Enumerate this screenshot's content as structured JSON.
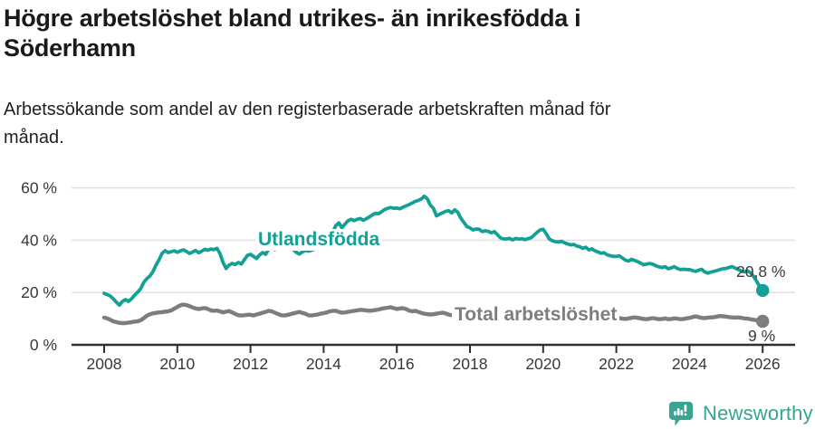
{
  "header": {
    "title_line1": "Högre arbetslöshet bland utrikes- än inrikesfödda i",
    "title_line2": "Söderhamn",
    "subtitle_line1": "Arbetssökande som andel av den registerbaserade arbetskraften månad för",
    "subtitle_line2": "månad."
  },
  "footer": {
    "brand": "Newsworthy"
  },
  "colors": {
    "foreign_born_line": "#14a096",
    "total_line": "#7d7d7d",
    "grid": "#e2e2e2",
    "axis": "#2f2f2f",
    "text": "#1a1a1a",
    "tick_text": "#383838",
    "logo": "#35a493"
  },
  "chart_data": {
    "type": "line",
    "title": "Högre arbetslöshet bland utrikes- än inrikesfödda i Söderhamn",
    "subtitle": "Arbetssökande som andel av den registerbaserade arbetskraften månad för månad.",
    "x_unit": "monthly, decimal years",
    "xlim": [
      2008,
      2026.9
    ],
    "ylim": [
      0,
      63
    ],
    "grid": "horizontal",
    "y_ticks": [
      {
        "value": 0,
        "label": "0 %"
      },
      {
        "value": 20,
        "label": "20 %"
      },
      {
        "value": 40,
        "label": "40 %"
      },
      {
        "value": 60,
        "label": "60 %"
      }
    ],
    "x_ticks": [
      {
        "value": 2008,
        "label": "2008"
      },
      {
        "value": 2010,
        "label": "2010"
      },
      {
        "value": 2012,
        "label": "2012"
      },
      {
        "value": 2014,
        "label": "2014"
      },
      {
        "value": 2016,
        "label": "2016"
      },
      {
        "value": 2018,
        "label": "2018"
      },
      {
        "value": 2020,
        "label": "2020"
      },
      {
        "value": 2022,
        "label": "2022"
      },
      {
        "value": 2024,
        "label": "2024"
      },
      {
        "value": 2026,
        "label": "2026"
      }
    ],
    "series": [
      {
        "id": "utlandsfodda",
        "name": "Utlandsfödda",
        "color": "#14a096",
        "line_width": 3.8,
        "start_year": 2008,
        "interval": "monthly",
        "end_label": "20,8 %",
        "end_value": 20.8,
        "values": [
          19.7,
          19.2,
          18.7,
          17.6,
          16.3,
          15.2,
          16.6,
          17.3,
          16.6,
          17.6,
          19.0,
          20.1,
          21.5,
          23.9,
          25.3,
          26.3,
          28.0,
          30.4,
          32.5,
          35.0,
          36.0,
          35.3,
          35.6,
          35.9,
          35.4,
          35.9,
          36.3,
          35.7,
          34.9,
          35.5,
          36.1,
          35.2,
          35.8,
          36.5,
          36.2,
          36.6,
          36.4,
          36.9,
          34.9,
          31.5,
          29.2,
          30.5,
          31.1,
          30.7,
          31.5,
          30.9,
          32.6,
          34.2,
          34.6,
          33.8,
          33.0,
          34.4,
          35.3,
          34.6,
          36.7,
          37.3,
          36.4,
          37.8,
          36.9,
          37.2,
          37.8,
          37.4,
          36.5,
          35.4,
          34.7,
          35.5,
          36.1,
          35.8,
          36.2,
          36.6,
          37.0,
          37.4,
          38.1,
          39.1,
          40.6,
          43.1,
          45.6,
          46.6,
          44.7,
          46.2,
          47.4,
          48.0,
          47.5,
          48.0,
          48.3,
          47.6,
          48.2,
          48.9,
          49.7,
          50.3,
          50.1,
          50.9,
          51.7,
          52.2,
          52.5,
          52.2,
          52.3,
          52.0,
          52.6,
          53.1,
          53.6,
          54.2,
          54.8,
          55.2,
          55.7,
          56.8,
          55.8,
          53.4,
          52.2,
          49.3,
          49.9,
          50.5,
          51.0,
          51.3,
          50.4,
          51.6,
          50.7,
          48.4,
          46.8,
          45.2,
          44.7,
          43.9,
          44.3,
          44.2,
          43.3,
          43.6,
          43.4,
          42.8,
          43.3,
          42.1,
          40.9,
          40.5,
          40.5,
          40.7,
          40.1,
          40.7,
          40.4,
          40.6,
          40.2,
          40.6,
          40.9,
          41.9,
          43.0,
          43.9,
          44.2,
          42.5,
          40.5,
          39.8,
          39.4,
          39.3,
          39.6,
          39.0,
          38.6,
          38.2,
          38.4,
          37.8,
          37.5,
          36.9,
          37.3,
          36.3,
          36.7,
          35.9,
          35.5,
          35.0,
          35.2,
          34.4,
          34.1,
          33.8,
          33.8,
          34.0,
          33.2,
          32.4,
          32.0,
          32.7,
          32.3,
          31.8,
          31.2,
          30.6,
          30.9,
          31.1,
          30.8,
          30.2,
          29.8,
          29.5,
          29.9,
          29.1,
          29.4,
          29.9,
          29.2,
          28.8,
          28.9,
          28.8,
          28.8,
          28.4,
          28.1,
          28.5,
          28.9,
          27.9,
          27.4,
          27.8,
          28.1,
          28.4,
          28.8,
          29.1,
          29.2,
          29.6,
          29.9,
          29.3,
          28.8,
          28.2,
          27.9,
          28.3,
          27.6,
          26.2,
          24.3,
          22.4,
          20.8
        ]
      },
      {
        "id": "total",
        "name": "Total arbetslöshet",
        "color": "#7d7d7d",
        "line_width": 4.4,
        "start_year": 2008,
        "interval": "monthly",
        "end_label": "9 %",
        "end_value": 9.0,
        "values": [
          10.4,
          10.1,
          9.6,
          9.0,
          8.7,
          8.4,
          8.3,
          8.3,
          8.5,
          8.7,
          8.9,
          9.0,
          9.4,
          10.2,
          11.1,
          11.7,
          12.0,
          12.2,
          12.4,
          12.5,
          12.7,
          12.8,
          13.2,
          13.8,
          14.5,
          15.1,
          15.4,
          15.2,
          14.8,
          14.3,
          13.9,
          13.7,
          13.9,
          14.1,
          13.7,
          13.2,
          13.0,
          13.1,
          12.8,
          12.4,
          12.7,
          12.9,
          12.4,
          11.8,
          11.3,
          11.2,
          11.3,
          11.5,
          11.5,
          11.2,
          11.6,
          11.9,
          12.3,
          12.6,
          13.0,
          12.8,
          12.3,
          11.8,
          11.3,
          11.2,
          11.4,
          11.7,
          12.0,
          12.3,
          12.6,
          12.2,
          11.9,
          11.3,
          11.2,
          11.4,
          11.6,
          11.9,
          12.1,
          12.4,
          12.8,
          13.0,
          13.0,
          12.6,
          12.3,
          12.4,
          12.6,
          12.8,
          13.0,
          13.2,
          13.4,
          13.3,
          13.2,
          13.0,
          13.1,
          13.3,
          13.5,
          13.8,
          14.0,
          14.2,
          14.4,
          14.0,
          13.7,
          13.9,
          14.0,
          13.7,
          13.1,
          12.8,
          13.0,
          12.6,
          12.2,
          11.9,
          11.7,
          11.6,
          11.7,
          11.9,
          12.1,
          12.3,
          12.0,
          11.6,
          11.3,
          11.2,
          11.4,
          11.6,
          11.5,
          11.3,
          11.2,
          11.0,
          10.9,
          11.0,
          11.2,
          11.0,
          10.8,
          10.7,
          10.8,
          11.0,
          10.9,
          10.7,
          10.8,
          10.9,
          11.0,
          11.1,
          11.0,
          10.8,
          10.9,
          11.0,
          11.2,
          11.3,
          11.2,
          11.4,
          11.6,
          11.9,
          12.3,
          12.6,
          12.8,
          12.6,
          12.4,
          12.2,
          12.0,
          11.8,
          11.6,
          11.4,
          11.5,
          11.3,
          11.1,
          10.9,
          10.8,
          10.6,
          10.4,
          10.3,
          10.2,
          10.1,
          10.0,
          10.2,
          10.3,
          10.2,
          10.0,
          9.9,
          10.1,
          10.3,
          10.5,
          10.3,
          10.1,
          9.9,
          9.8,
          10.0,
          10.2,
          10.0,
          9.8,
          9.9,
          10.1,
          9.8,
          9.9,
          10.1,
          10.0,
          9.8,
          9.9,
          10.1,
          10.3,
          10.6,
          10.9,
          10.6,
          10.3,
          10.2,
          10.4,
          10.5,
          10.6,
          10.8,
          11.0,
          10.9,
          10.8,
          10.6,
          10.5,
          10.4,
          10.5,
          10.3,
          10.1,
          10.0,
          9.8,
          9.6,
          9.4,
          9.2,
          9.0
        ]
      }
    ]
  }
}
